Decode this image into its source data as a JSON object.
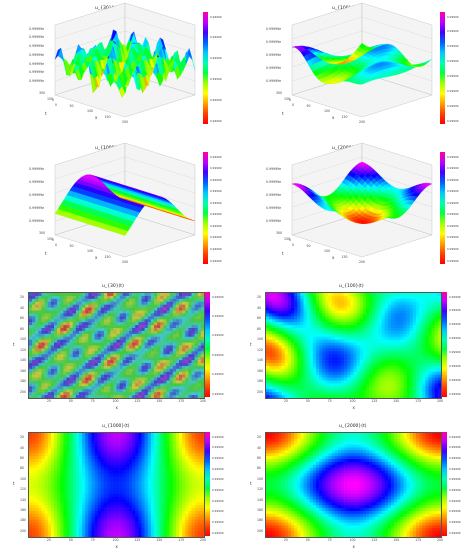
{
  "charts": [
    {
      "id": "p1",
      "type": "surface3d",
      "title": "u_{30}(t)",
      "zticks": [
        "0.99999e",
        "0.99999e",
        "0.99999e",
        "0.99999e",
        "0.99999e",
        "0.99999e",
        "0.99999e"
      ],
      "cbticks": [
        "0.99999",
        "0.99999",
        "0.99999",
        "0.99999",
        "0.99999",
        "0.99999"
      ],
      "xlabel": "t",
      "ylabel": "x",
      "xticks": [
        "300",
        "150",
        "0"
      ],
      "yticks": [
        "0",
        "50",
        "100",
        "150",
        "200"
      ]
    },
    {
      "id": "p2",
      "type": "surface3d",
      "title": "u_{100}(t)",
      "zticks": [
        "0.99999e",
        "0.99999e",
        "0.99999e",
        "0.99999e",
        "0.99999e"
      ],
      "cbticks": [
        "0.99999",
        "0.99999",
        "0.99999",
        "0.99999",
        "0.99999",
        "0.99999",
        "0.99999",
        "0.99999"
      ],
      "xlabel": "t",
      "ylabel": "x",
      "xticks": [
        "300",
        "150",
        "0"
      ],
      "yticks": [
        "0",
        "50",
        "100",
        "150",
        "200"
      ]
    },
    {
      "id": "p3",
      "type": "surface3d",
      "title": "u_{1000}(t)",
      "zticks": [
        "0.99999e",
        "0.99999e",
        "0.99999e",
        "0.99999e",
        "0.99999e"
      ],
      "cbticks": [
        "0.99999",
        "0.99999",
        "0.99999",
        "0.99999",
        "0.99999",
        "0.99999",
        "0.99999",
        "0.99999",
        "0.99999",
        "0.99999"
      ],
      "xlabel": "t",
      "ylabel": "x",
      "xticks": [
        "300",
        "150",
        "0"
      ],
      "yticks": [
        "0",
        "50",
        "100",
        "150",
        "200"
      ]
    },
    {
      "id": "p4",
      "type": "surface3d",
      "title": "u_{2000}(t)",
      "zticks": [
        "0.99999e",
        "0.99999e",
        "0.99999e",
        "0.99999e",
        "0.99999e"
      ],
      "cbticks": [
        "0.99999",
        "0.99999",
        "0.99999",
        "0.99999",
        "0.99999",
        "0.99999",
        "0.99999",
        "0.99999",
        "0.99999",
        "0.99999"
      ],
      "xlabel": "t",
      "ylabel": "x",
      "xticks": [
        "300",
        "150",
        "0"
      ],
      "yticks": [
        "0",
        "50",
        "100",
        "150",
        "200"
      ]
    },
    {
      "id": "p5",
      "type": "heatmap",
      "title": "u_{30}(t)",
      "xlabel": "x",
      "ylabel": "t",
      "xticks": [
        "25",
        "50",
        "75",
        "100",
        "125",
        "150",
        "175",
        "200"
      ],
      "yticks": [
        "20",
        "40",
        "60",
        "80",
        "100",
        "120",
        "140",
        "160",
        "180",
        "200"
      ],
      "cbticks": [
        "0.99999",
        "0.99999",
        "0.99999",
        "0.99999",
        "0.99999",
        "0.99999"
      ]
    },
    {
      "id": "p6",
      "type": "heatmap",
      "title": "u_{100}(t)",
      "xlabel": "x",
      "ylabel": "t",
      "xticks": [
        "25",
        "50",
        "75",
        "100",
        "125",
        "150",
        "175",
        "200"
      ],
      "yticks": [
        "20",
        "40",
        "60",
        "80",
        "100",
        "120",
        "140",
        "160",
        "180",
        "200"
      ],
      "cbticks": [
        "0.99999",
        "0.99999",
        "0.99999",
        "0.99999",
        "0.99999",
        "0.99999",
        "0.99999",
        "0.99999"
      ]
    },
    {
      "id": "p7",
      "type": "heatmap",
      "title": "u_{1000}(t)",
      "xlabel": "x",
      "ylabel": "t",
      "xticks": [
        "25",
        "50",
        "75",
        "100",
        "125",
        "150",
        "175",
        "200"
      ],
      "yticks": [
        "20",
        "40",
        "60",
        "80",
        "100",
        "120",
        "140",
        "160",
        "180",
        "200"
      ],
      "cbticks": [
        "0.99999",
        "0.99999",
        "0.99999",
        "0.99999",
        "0.99999",
        "0.99999",
        "0.99999",
        "0.99999",
        "0.99999",
        "0.99999"
      ]
    },
    {
      "id": "p8",
      "type": "heatmap",
      "title": "u_{2000}(t)",
      "xlabel": "x",
      "ylabel": "t",
      "xticks": [
        "25",
        "50",
        "75",
        "100",
        "125",
        "150",
        "175",
        "200"
      ],
      "yticks": [
        "20",
        "40",
        "60",
        "80",
        "100",
        "120",
        "140",
        "160",
        "180",
        "200"
      ],
      "cbticks": [
        "0.99999",
        "0.99999",
        "0.99999",
        "0.99999",
        "0.99999",
        "0.99999",
        "0.99999",
        "0.99999",
        "0.99999",
        "0.99999"
      ]
    }
  ]
}
